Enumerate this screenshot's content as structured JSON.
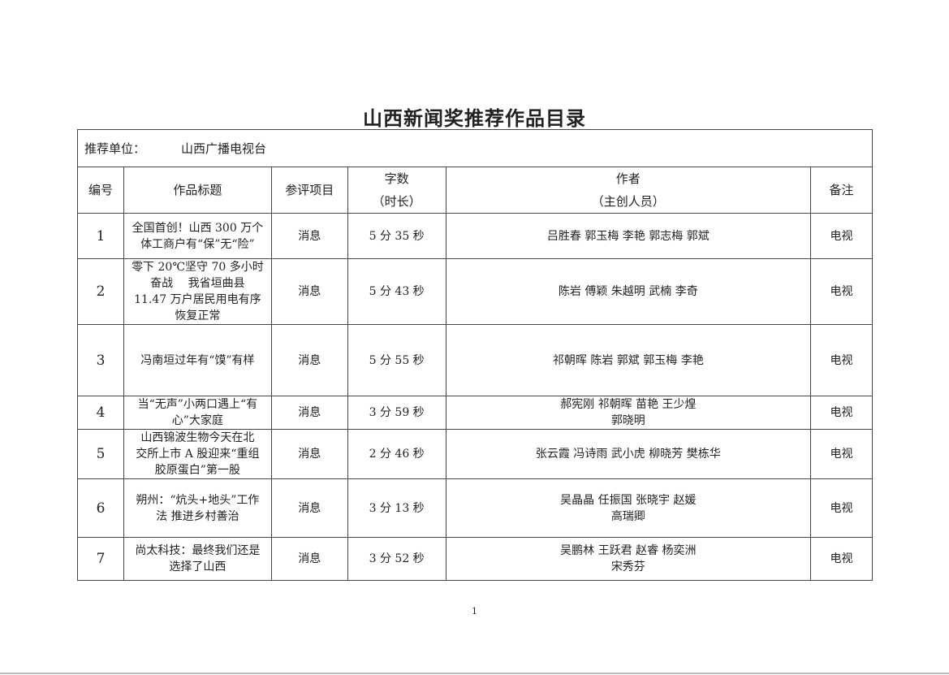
{
  "title": "山西新闻奖推荐作品目录",
  "unit": {
    "label": "推荐单位：",
    "value": "山西广播电视台"
  },
  "headers": {
    "no": "编号",
    "title": "作品标题",
    "category": "参评项目",
    "length": [
      "字数",
      "（时长）"
    ],
    "authors": [
      "作者",
      "（主创人员）"
    ],
    "note": "备注"
  },
  "rows": [
    {
      "no": "1",
      "title": [
        "全国首创！山西 300 万个",
        "体工商户有“保”无“险”"
      ],
      "category": "消息",
      "length": "5 分 35 秒",
      "authors": [
        "吕胜春 郭玉梅 李艳 郭志梅 郭斌"
      ],
      "note": "电视"
    },
    {
      "no": "2",
      "title": [
        "零下 20℃坚守 70 多小时",
        "奋战　 我省垣曲县",
        "11.47 万户居民用电有序",
        "恢复正常"
      ],
      "category": "消息",
      "length": "5 分 43 秒",
      "authors": [
        "陈岩 傅颖 朱越明 武楠 李奇"
      ],
      "note": "电视"
    },
    {
      "no": "3",
      "title": [
        "冯南垣过年有“馍”有样"
      ],
      "category": "消息",
      "length": "5 分 55 秒",
      "authors": [
        "祁朝晖 陈岩 郭斌 郭玉梅 李艳"
      ],
      "note": "电视"
    },
    {
      "no": "4",
      "title": [
        "当“无声”小两口遇上“有",
        "心”大家庭"
      ],
      "category": "消息",
      "length": "3 分 59 秒",
      "authors": [
        "郝宪刚 祁朝晖 苗艳 王少煌",
        "郭晓明"
      ],
      "note": "电视"
    },
    {
      "no": "5",
      "title": [
        "山西锦波生物今天在北",
        "交所上市 A 股迎来“重组",
        "胶原蛋白”第一股"
      ],
      "category": "消息",
      "length": "2 分 46 秒",
      "authors": [
        "张云霞 冯诗雨 武小虎 柳晓芳 樊栋华"
      ],
      "note": "电视"
    },
    {
      "no": "6",
      "title": [
        "朔州：“炕头+地头”工作",
        "法 推进乡村善治"
      ],
      "category": "消息",
      "length": "3 分 13 秒",
      "authors": [
        "吴晶晶 任振国 张晓宇 赵媛",
        "高瑞卿"
      ],
      "note": "电视"
    },
    {
      "no": "7",
      "title": [
        "尚太科技：最终我们还是",
        "选择了山西"
      ],
      "category": "消息",
      "length": "3 分 52 秒",
      "authors": [
        "吴鹏林 王跃君 赵睿 杨奕洲",
        "宋秀芬"
      ],
      "note": "电视"
    }
  ],
  "page_number": "1"
}
